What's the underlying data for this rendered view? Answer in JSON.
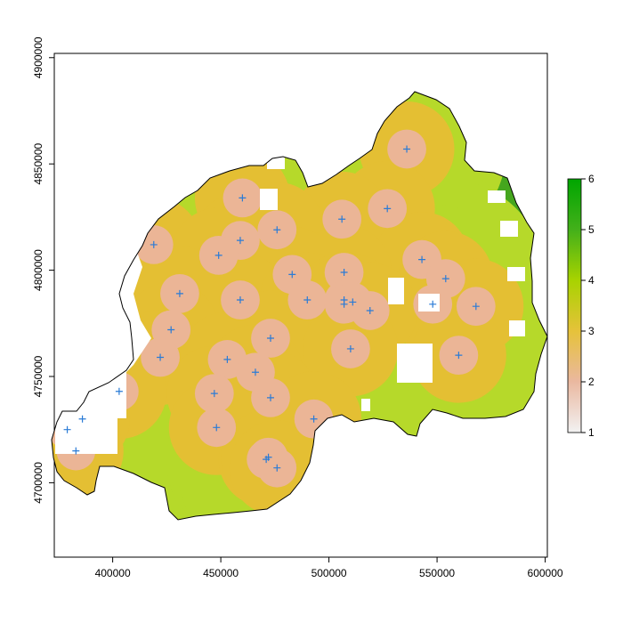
{
  "chart_data": {
    "type": "raster-map",
    "title": "",
    "xlabel": "",
    "ylabel": "",
    "xlim": [
      373000,
      601000
    ],
    "ylim": [
      4665000,
      4902000
    ],
    "x_ticks": [
      {
        "value": 400000,
        "label": "400000"
      },
      {
        "value": 450000,
        "label": "450000"
      },
      {
        "value": 500000,
        "label": "500000"
      },
      {
        "value": 550000,
        "label": "550000"
      },
      {
        "value": 600000,
        "label": "600000"
      }
    ],
    "y_ticks": [
      {
        "value": 4700000,
        "label": "4700000"
      },
      {
        "value": 4750000,
        "label": "4750000"
      },
      {
        "value": 4800000,
        "label": "4800000"
      },
      {
        "value": 4850000,
        "label": "4850000"
      },
      {
        "value": 4900000,
        "label": "4900000"
      }
    ],
    "legend": {
      "position": "right",
      "min": 1,
      "max": 6,
      "ticks": [
        {
          "value": 1,
          "label": "1"
        },
        {
          "value": 2,
          "label": "2"
        },
        {
          "value": 3,
          "label": "3"
        },
        {
          "value": 4,
          "label": "4"
        },
        {
          "value": 5,
          "label": "5"
        },
        {
          "value": 6,
          "label": "6"
        }
      ],
      "colors": [
        "#f2f2f2",
        "#eab8a0",
        "#e6c23a",
        "#a8d300",
        "#43b01a",
        "#00a600"
      ]
    },
    "zone_colors": {
      "near": "#ebb596",
      "mid": "#e4bf33",
      "far": "#b6d92a",
      "farthest": "#45a61e"
    },
    "points": [
      {
        "x": 536000,
        "y": 4857000
      },
      {
        "x": 460000,
        "y": 4834000
      },
      {
        "x": 527000,
        "y": 4829000
      },
      {
        "x": 506000,
        "y": 4824000
      },
      {
        "x": 476000,
        "y": 4819000
      },
      {
        "x": 419000,
        "y": 4812000
      },
      {
        "x": 459000,
        "y": 4814000
      },
      {
        "x": 449000,
        "y": 4807000
      },
      {
        "x": 543000,
        "y": 4805000
      },
      {
        "x": 507000,
        "y": 4799000
      },
      {
        "x": 483000,
        "y": 4798000
      },
      {
        "x": 554000,
        "y": 4796000
      },
      {
        "x": 431000,
        "y": 4789000
      },
      {
        "x": 459000,
        "y": 4786000
      },
      {
        "x": 490000,
        "y": 4786000
      },
      {
        "x": 507000,
        "y": 4786000
      },
      {
        "x": 511000,
        "y": 4785000
      },
      {
        "x": 507000,
        "y": 4784000
      },
      {
        "x": 548000,
        "y": 4784000
      },
      {
        "x": 568000,
        "y": 4783000
      },
      {
        "x": 519000,
        "y": 4781000
      },
      {
        "x": 427000,
        "y": 4772000
      },
      {
        "x": 473000,
        "y": 4768000
      },
      {
        "x": 510000,
        "y": 4763000
      },
      {
        "x": 560000,
        "y": 4760000
      },
      {
        "x": 422000,
        "y": 4759000
      },
      {
        "x": 453000,
        "y": 4758000
      },
      {
        "x": 466000,
        "y": 4752000
      },
      {
        "x": 403000,
        "y": 4743000
      },
      {
        "x": 447000,
        "y": 4742000
      },
      {
        "x": 473000,
        "y": 4740000
      },
      {
        "x": 493000,
        "y": 4730000
      },
      {
        "x": 386000,
        "y": 4730000
      },
      {
        "x": 379000,
        "y": 4725000
      },
      {
        "x": 448000,
        "y": 4726000
      },
      {
        "x": 383000,
        "y": 4715000
      },
      {
        "x": 471000,
        "y": 4711000
      },
      {
        "x": 472000,
        "y": 4712000
      },
      {
        "x": 476000,
        "y": 4707000
      }
    ]
  }
}
